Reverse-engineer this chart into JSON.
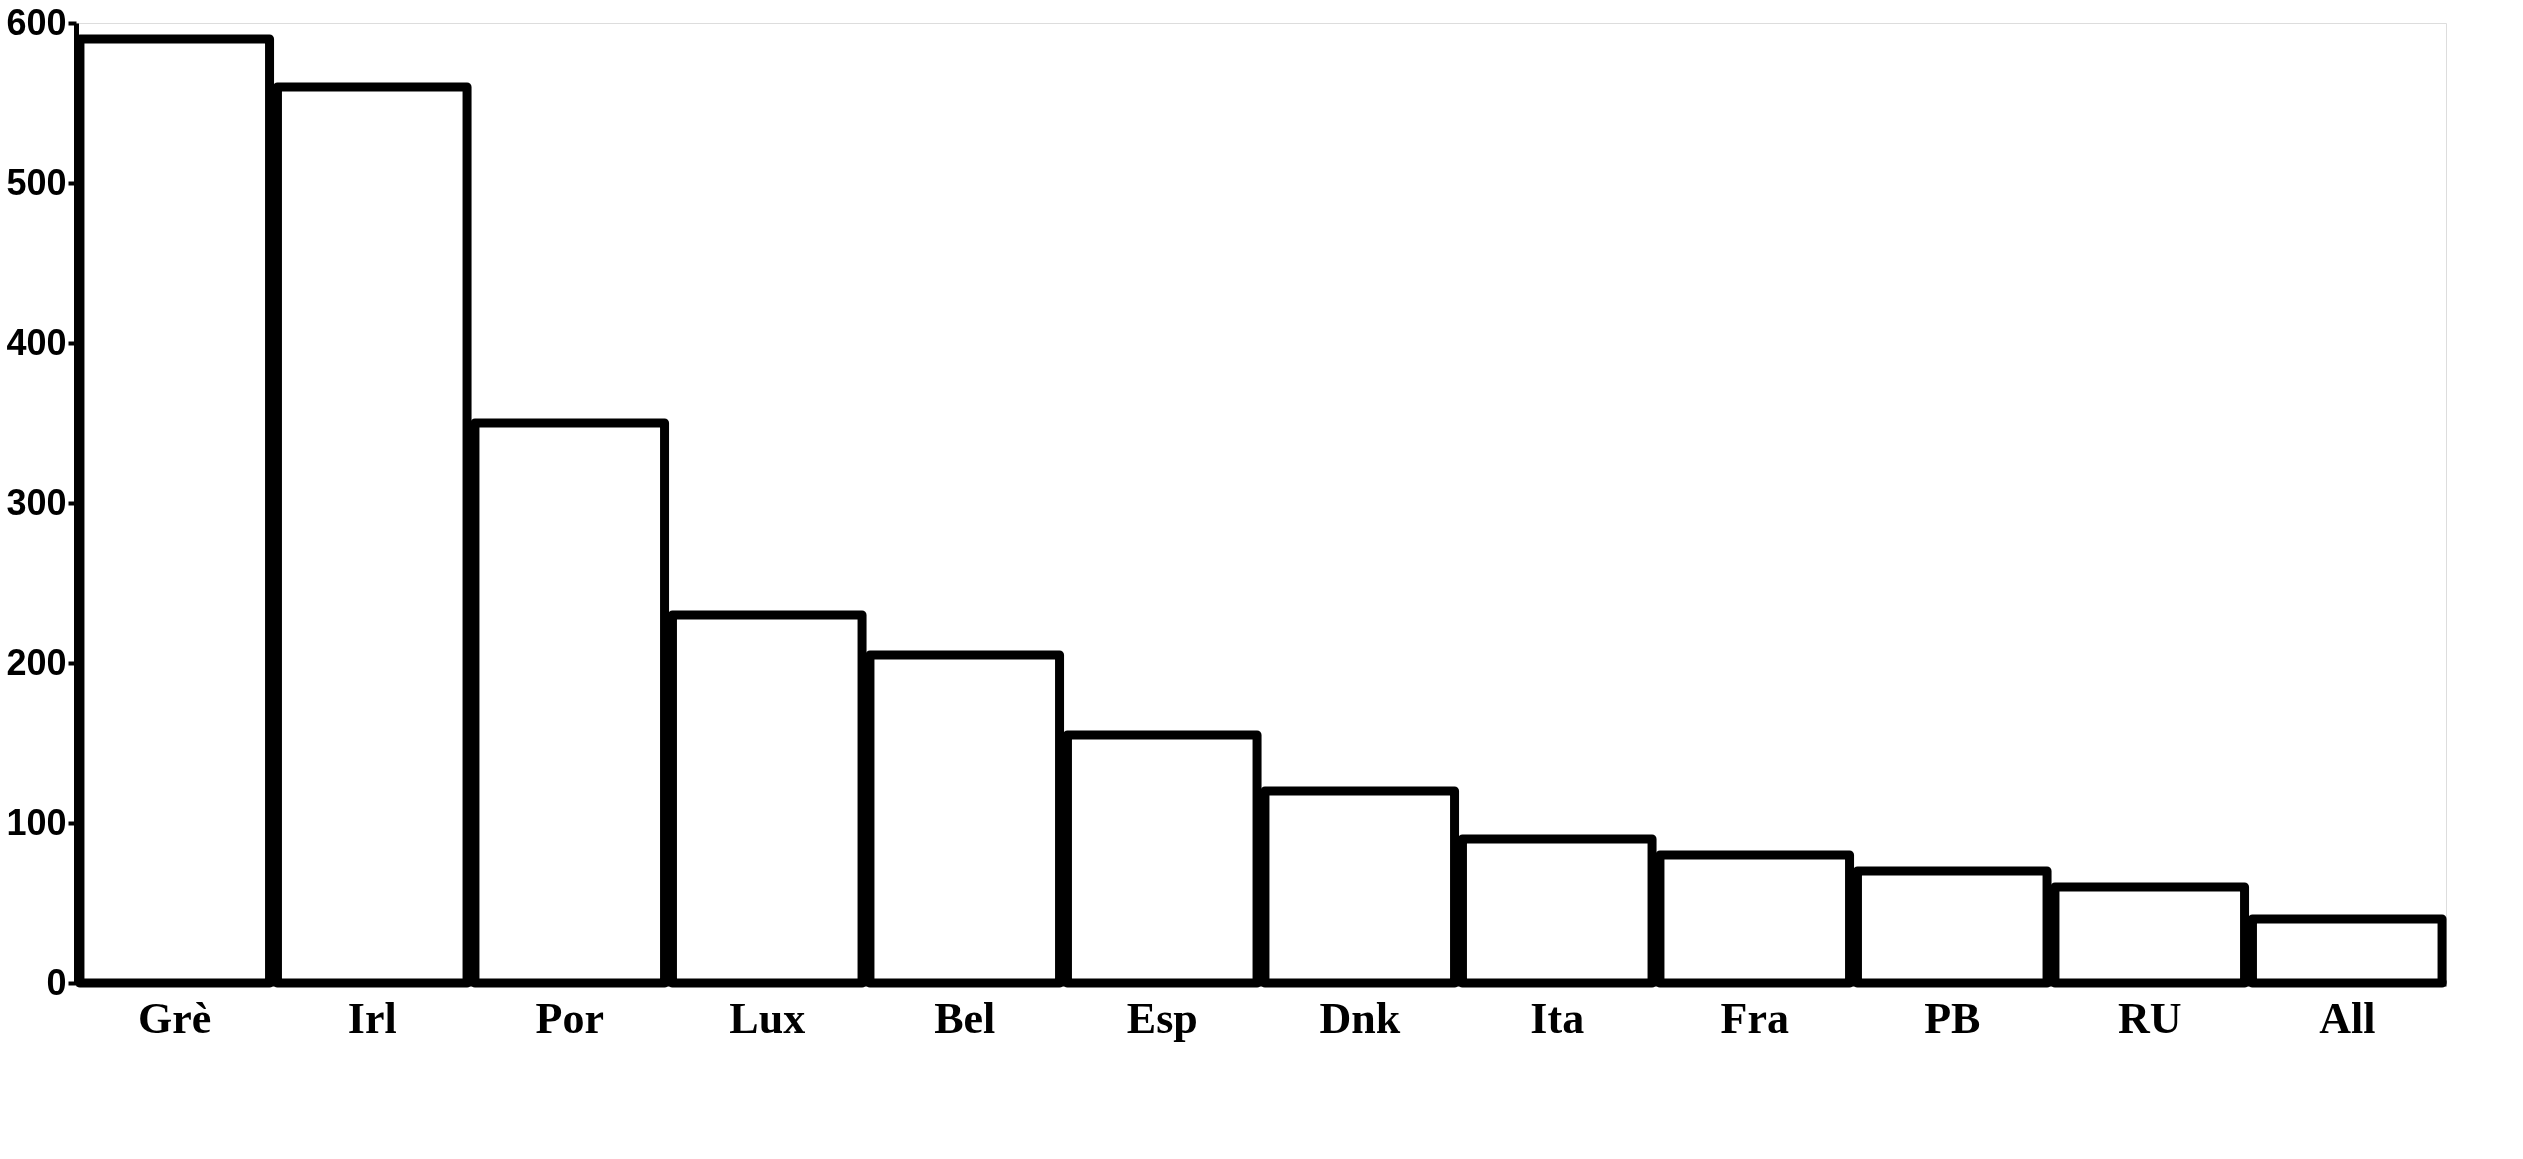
{
  "chart_data": {
    "type": "bar",
    "categories": [
      "Grè",
      "Irl",
      "Por",
      "Lux",
      "Bel",
      "Esp",
      "Dnk",
      "Ita",
      "Fra",
      "PB",
      "RU",
      "All"
    ],
    "values": [
      590,
      560,
      350,
      230,
      205,
      155,
      120,
      90,
      80,
      70,
      60,
      40
    ],
    "color": "#ffffff",
    "ylim": [
      0,
      600
    ],
    "yticks": [
      0,
      100,
      200,
      300,
      400,
      500,
      600
    ],
    "grid": false
  }
}
